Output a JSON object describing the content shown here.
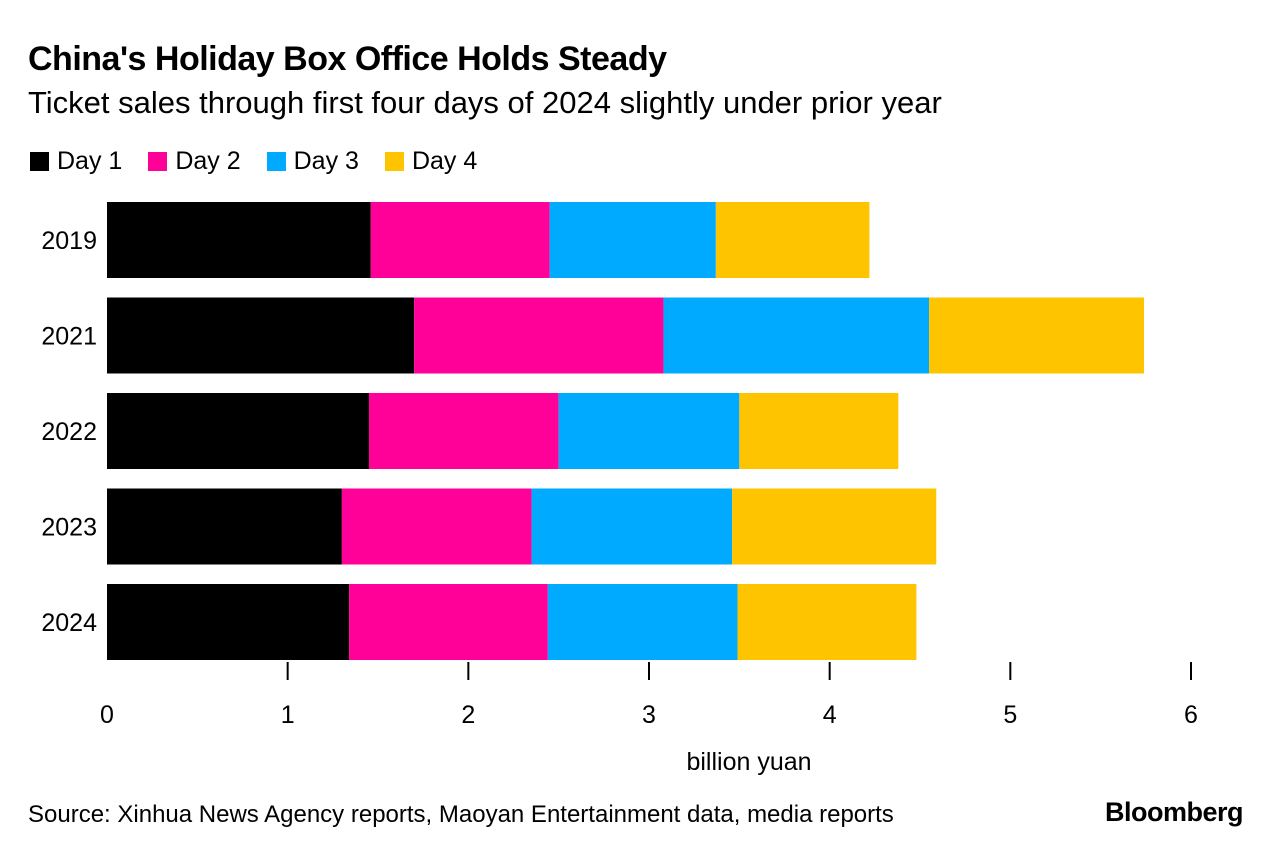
{
  "header": {
    "title": "China's Holiday Box Office Holds Steady",
    "subtitle": "Ticket sales through first four days of 2024 slightly under prior year"
  },
  "legend": [
    {
      "label": "Day 1",
      "color": "#000000"
    },
    {
      "label": "Day 2",
      "color": "#ff0099"
    },
    {
      "label": "Day 3",
      "color": "#00aaff"
    },
    {
      "label": "Day 4",
      "color": "#ffc400"
    }
  ],
  "chart_data": {
    "type": "bar",
    "orientation": "horizontal",
    "stacked": true,
    "title": "China's Holiday Box Office Holds Steady",
    "subtitle": "Ticket sales through first four days of 2024 slightly under prior year",
    "categories": [
      "2019",
      "2021",
      "2022",
      "2023",
      "2024"
    ],
    "series": [
      {
        "name": "Day 1",
        "color": "#000000",
        "values": [
          1.46,
          1.7,
          1.45,
          1.3,
          1.34
        ]
      },
      {
        "name": "Day 2",
        "color": "#ff0099",
        "values": [
          0.99,
          1.38,
          1.05,
          1.05,
          1.1
        ]
      },
      {
        "name": "Day 3",
        "color": "#00aaff",
        "values": [
          0.92,
          1.47,
          1.0,
          1.11,
          1.05
        ]
      },
      {
        "name": "Day 4",
        "color": "#ffc400",
        "values": [
          0.85,
          1.19,
          0.88,
          1.13,
          0.99
        ]
      }
    ],
    "xlabel": "billion yuan",
    "ylabel": "",
    "xlim": [
      0,
      6
    ],
    "xticks": [
      "0",
      "1",
      "2",
      "3",
      "4",
      "5",
      "6"
    ],
    "legend_position": "top-left",
    "grid": false
  },
  "footer": {
    "source": "Source: Xinhua News Agency reports, Maoyan Entertainment data, media reports",
    "brand": "Bloomberg"
  }
}
